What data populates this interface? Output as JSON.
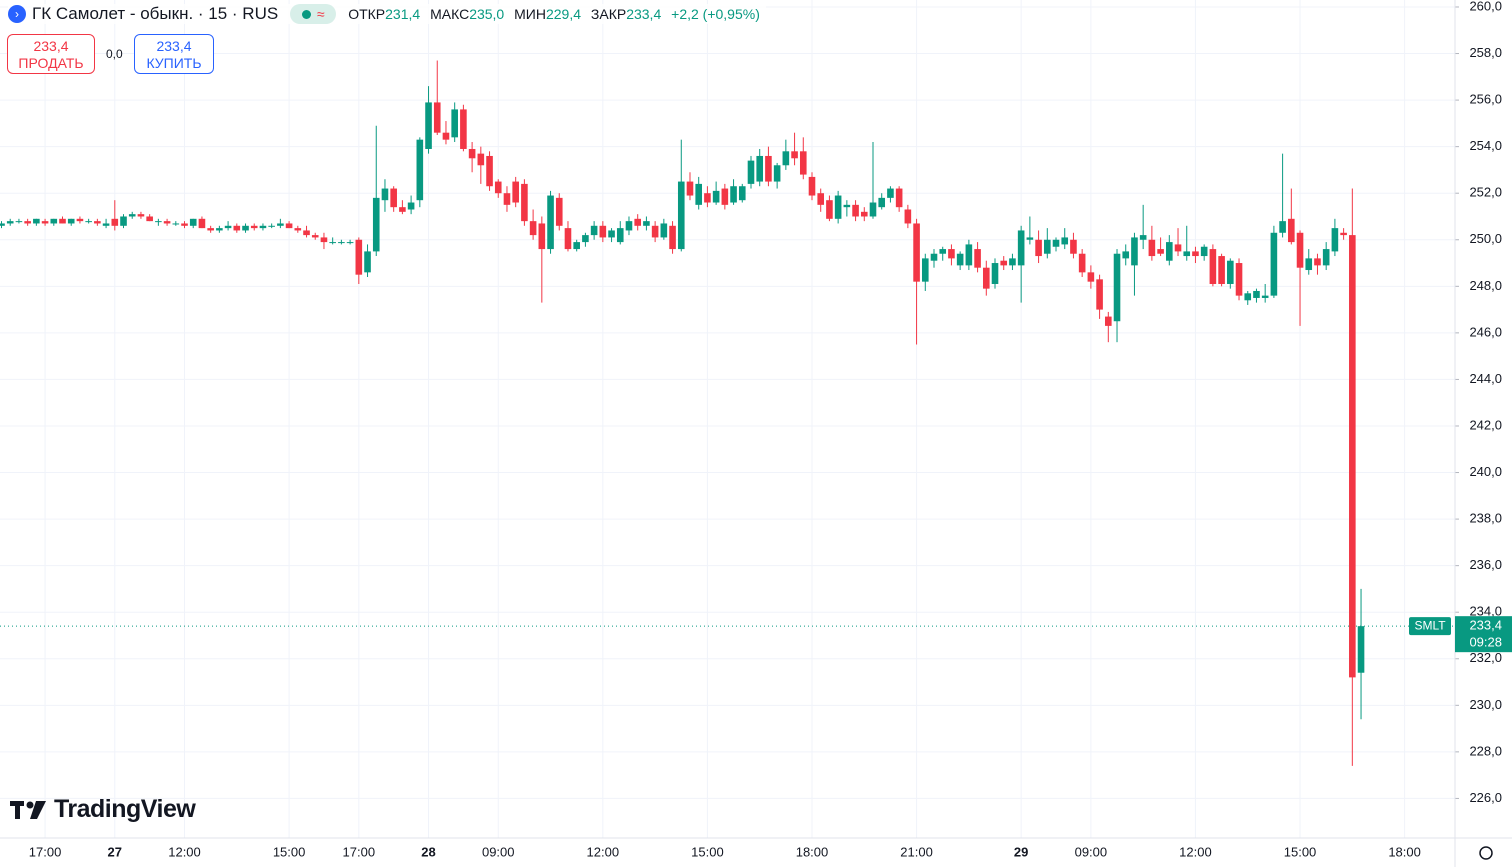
{
  "header": {
    "symbol": "ГК Самолет - обыкн. · 15 · RUS",
    "ohlc_legend": [
      {
        "label": "ОТКР",
        "value": "231,4"
      },
      {
        "label": "МАКС",
        "value": "235,0"
      },
      {
        "label": "МИН",
        "value": "229,4"
      },
      {
        "label": "ЗАКР",
        "value": "233,4"
      }
    ],
    "change": "+2,2 (+0,95%)"
  },
  "trade": {
    "sell_price": "233,4",
    "sell_label": "ПРОДАТЬ",
    "spread": "0,0",
    "buy_price": "233,4",
    "buy_label": "КУПИТЬ"
  },
  "branding": {
    "logo": "TradingView"
  },
  "chart_data": {
    "type": "candlestick",
    "up_color": "#089981",
    "down_color": "#f23645",
    "grid": true,
    "ylim": [
      224.3,
      260.3
    ],
    "yticks": [
      {
        "value": 226,
        "label": "226,0"
      },
      {
        "value": 228,
        "label": "228,0"
      },
      {
        "value": 230,
        "label": "230,0"
      },
      {
        "value": 232,
        "label": "232,0"
      },
      {
        "value": 234,
        "label": "234,0"
      },
      {
        "value": 236,
        "label": "236,0"
      },
      {
        "value": 238,
        "label": "238,0"
      },
      {
        "value": 240,
        "label": "240,0"
      },
      {
        "value": 242,
        "label": "242,0"
      },
      {
        "value": 244,
        "label": "244,0"
      },
      {
        "value": 246,
        "label": "246,0"
      },
      {
        "value": 248,
        "label": "248,0"
      },
      {
        "value": 250,
        "label": "250,0"
      },
      {
        "value": 252,
        "label": "252,0"
      },
      {
        "value": 254,
        "label": "254,0"
      },
      {
        "value": 256,
        "label": "256,0"
      },
      {
        "value": 258,
        "label": "258,0"
      },
      {
        "value": 260,
        "label": "260,0"
      }
    ],
    "last_price": {
      "value": 233.4,
      "label": "233,4",
      "ticker": "SMLT",
      "countdown": "09:28"
    },
    "categories": [
      null,
      null,
      null,
      null,
      null,
      "17:00",
      null,
      null,
      null,
      null,
      null,
      null,
      null,
      "27",
      null,
      null,
      null,
      null,
      null,
      null,
      null,
      "12:00",
      null,
      null,
      null,
      null,
      null,
      null,
      null,
      null,
      null,
      null,
      null,
      "15:00",
      null,
      null,
      null,
      null,
      null,
      null,
      null,
      "17:00",
      null,
      null,
      null,
      null,
      null,
      null,
      null,
      "28",
      null,
      null,
      null,
      null,
      null,
      null,
      null,
      "09:00",
      null,
      null,
      null,
      null,
      null,
      null,
      null,
      null,
      null,
      null,
      null,
      "12:00",
      null,
      null,
      null,
      null,
      null,
      null,
      null,
      null,
      null,
      null,
      null,
      "15:00",
      null,
      null,
      null,
      null,
      null,
      null,
      null,
      null,
      null,
      null,
      null,
      "18:00",
      null,
      null,
      null,
      null,
      null,
      null,
      null,
      null,
      null,
      null,
      null,
      "21:00",
      null,
      null,
      null,
      null,
      null,
      null,
      null,
      null,
      null,
      null,
      null,
      "29",
      null,
      null,
      null,
      null,
      null,
      null,
      null,
      "09:00",
      null,
      null,
      null,
      null,
      null,
      null,
      null,
      null,
      null,
      null,
      null,
      "12:00",
      null,
      null,
      null,
      null,
      null,
      null,
      null,
      null,
      null,
      null,
      null,
      "15:00",
      null,
      null,
      null,
      null,
      null,
      null,
      null,
      null,
      null,
      null,
      null,
      "18:00"
    ],
    "ohlc": [
      [
        250.6,
        250.8,
        250.5,
        250.7
      ],
      [
        250.7,
        250.9,
        250.6,
        250.8
      ],
      [
        250.8,
        250.9,
        250.7,
        250.8
      ],
      [
        250.8,
        250.9,
        250.6,
        250.7
      ],
      [
        250.7,
        250.9,
        250.6,
        250.9
      ],
      [
        250.8,
        250.9,
        250.6,
        250.7
      ],
      [
        250.7,
        250.9,
        250.6,
        250.9
      ],
      [
        250.9,
        251.0,
        250.7,
        250.7
      ],
      [
        250.7,
        250.9,
        250.6,
        250.9
      ],
      [
        250.9,
        251.0,
        250.7,
        250.8
      ],
      [
        250.8,
        250.9,
        250.7,
        250.8
      ],
      [
        250.8,
        250.9,
        250.6,
        250.7
      ],
      [
        250.6,
        250.9,
        250.5,
        250.7
      ],
      [
        250.9,
        251.7,
        250.4,
        250.6
      ],
      [
        250.6,
        251.1,
        250.5,
        251.0
      ],
      [
        251.0,
        251.2,
        250.9,
        251.1
      ],
      [
        251.1,
        251.2,
        250.9,
        251.0
      ],
      [
        251.0,
        251.1,
        250.8,
        250.8
      ],
      [
        250.8,
        250.9,
        250.6,
        250.8
      ],
      [
        250.8,
        250.9,
        250.6,
        250.7
      ],
      [
        250.7,
        250.8,
        250.6,
        250.7
      ],
      [
        250.7,
        250.8,
        250.5,
        250.6
      ],
      [
        250.6,
        250.9,
        250.5,
        250.9
      ],
      [
        250.9,
        251.0,
        250.5,
        250.5
      ],
      [
        250.5,
        250.6,
        250.3,
        250.4
      ],
      [
        250.4,
        250.6,
        250.3,
        250.5
      ],
      [
        250.5,
        250.8,
        250.4,
        250.6
      ],
      [
        250.6,
        250.7,
        250.3,
        250.4
      ],
      [
        250.4,
        250.7,
        250.3,
        250.6
      ],
      [
        250.6,
        250.7,
        250.4,
        250.5
      ],
      [
        250.5,
        250.7,
        250.4,
        250.6
      ],
      [
        250.6,
        250.7,
        250.5,
        250.6
      ],
      [
        250.6,
        250.9,
        250.5,
        250.7
      ],
      [
        250.7,
        250.8,
        250.5,
        250.5
      ],
      [
        250.5,
        250.6,
        250.3,
        250.4
      ],
      [
        250.4,
        250.6,
        250.1,
        250.2
      ],
      [
        250.2,
        250.3,
        250.0,
        250.1
      ],
      [
        250.1,
        250.3,
        249.6,
        249.9
      ],
      [
        249.9,
        250.1,
        249.8,
        249.9
      ],
      [
        249.9,
        250.0,
        249.8,
        249.9
      ],
      [
        249.9,
        250.0,
        249.8,
        249.9
      ],
      [
        250.0,
        250.1,
        248.1,
        248.5
      ],
      [
        248.6,
        249.8,
        248.4,
        249.5
      ],
      [
        249.5,
        254.9,
        249.3,
        251.8
      ],
      [
        251.7,
        252.6,
        251.2,
        252.2
      ],
      [
        252.2,
        252.3,
        251.2,
        251.4
      ],
      [
        251.4,
        251.7,
        251.1,
        251.2
      ],
      [
        251.3,
        251.9,
        251.1,
        251.6
      ],
      [
        251.7,
        254.4,
        251.4,
        254.3
      ],
      [
        253.9,
        256.6,
        253.7,
        255.9
      ],
      [
        255.9,
        257.7,
        254.5,
        254.6
      ],
      [
        254.6,
        255.1,
        254.1,
        254.3
      ],
      [
        254.4,
        255.9,
        254.2,
        255.6
      ],
      [
        255.6,
        255.8,
        253.8,
        253.9
      ],
      [
        253.9,
        254.2,
        252.9,
        253.5
      ],
      [
        253.7,
        254.0,
        252.4,
        253.2
      ],
      [
        253.6,
        253.8,
        252.1,
        252.3
      ],
      [
        252.5,
        252.6,
        251.8,
        252.0
      ],
      [
        252.0,
        252.3,
        251.2,
        251.5
      ],
      [
        252.5,
        252.7,
        251.4,
        251.6
      ],
      [
        252.4,
        252.6,
        250.6,
        250.8
      ],
      [
        250.8,
        251.3,
        250.0,
        250.2
      ],
      [
        250.7,
        251.0,
        247.3,
        249.6
      ],
      [
        249.6,
        252.1,
        249.4,
        251.9
      ],
      [
        251.8,
        252.0,
        250.4,
        250.6
      ],
      [
        250.5,
        250.8,
        249.5,
        249.6
      ],
      [
        249.6,
        250.0,
        249.5,
        249.9
      ],
      [
        249.9,
        250.3,
        249.7,
        250.2
      ],
      [
        250.2,
        250.8,
        250.0,
        250.6
      ],
      [
        250.6,
        250.8,
        249.9,
        250.1
      ],
      [
        250.1,
        250.5,
        249.9,
        250.4
      ],
      [
        249.9,
        250.8,
        249.8,
        250.5
      ],
      [
        250.4,
        251.0,
        250.2,
        250.8
      ],
      [
        250.9,
        251.1,
        250.4,
        250.6
      ],
      [
        250.6,
        251.0,
        250.4,
        250.8
      ],
      [
        250.6,
        250.8,
        249.9,
        250.1
      ],
      [
        250.1,
        250.9,
        250.0,
        250.7
      ],
      [
        250.6,
        250.8,
        249.4,
        249.6
      ],
      [
        249.6,
        254.3,
        249.5,
        252.5
      ],
      [
        252.5,
        252.9,
        251.7,
        251.9
      ],
      [
        251.5,
        252.7,
        251.3,
        252.4
      ],
      [
        252.0,
        252.3,
        251.4,
        251.6
      ],
      [
        251.6,
        252.5,
        251.5,
        252.1
      ],
      [
        252.2,
        252.4,
        251.3,
        251.5
      ],
      [
        251.6,
        252.6,
        251.5,
        252.3
      ],
      [
        251.7,
        252.4,
        251.6,
        252.3
      ],
      [
        252.4,
        253.6,
        252.2,
        253.4
      ],
      [
        252.5,
        253.9,
        252.3,
        253.6
      ],
      [
        253.6,
        254.0,
        252.3,
        252.5
      ],
      [
        252.5,
        253.3,
        252.2,
        253.2
      ],
      [
        253.2,
        254.3,
        253.0,
        253.8
      ],
      [
        253.8,
        254.6,
        253.2,
        253.5
      ],
      [
        253.8,
        254.4,
        252.6,
        252.8
      ],
      [
        252.7,
        252.9,
        251.7,
        251.9
      ],
      [
        252.0,
        252.2,
        251.2,
        251.5
      ],
      [
        251.7,
        251.9,
        250.8,
        250.9
      ],
      [
        250.9,
        252.1,
        250.7,
        251.9
      ],
      [
        251.4,
        251.7,
        251.0,
        251.5
      ],
      [
        251.5,
        251.7,
        250.8,
        251.0
      ],
      [
        251.2,
        251.4,
        250.8,
        251.0
      ],
      [
        251.0,
        254.2,
        250.9,
        251.6
      ],
      [
        251.4,
        252.0,
        251.3,
        251.8
      ],
      [
        251.8,
        252.3,
        251.6,
        252.2
      ],
      [
        252.2,
        252.3,
        251.2,
        251.4
      ],
      [
        251.3,
        251.5,
        250.5,
        250.7
      ],
      [
        250.7,
        250.9,
        245.5,
        248.2
      ],
      [
        248.2,
        249.4,
        247.8,
        249.2
      ],
      [
        249.1,
        249.6,
        248.8,
        249.4
      ],
      [
        249.4,
        249.7,
        249.1,
        249.6
      ],
      [
        249.6,
        249.8,
        248.9,
        249.2
      ],
      [
        248.9,
        249.5,
        248.7,
        249.4
      ],
      [
        248.9,
        250.0,
        248.7,
        249.8
      ],
      [
        249.6,
        249.9,
        248.6,
        248.8
      ],
      [
        248.8,
        249.1,
        247.6,
        247.9
      ],
      [
        248.1,
        249.2,
        247.9,
        249.0
      ],
      [
        249.1,
        249.3,
        248.7,
        248.9
      ],
      [
        248.9,
        249.4,
        248.7,
        249.2
      ],
      [
        248.9,
        250.6,
        247.3,
        250.4
      ],
      [
        250.0,
        251.0,
        249.8,
        250.1
      ],
      [
        250.0,
        250.4,
        249.0,
        249.3
      ],
      [
        249.4,
        250.5,
        249.2,
        250.0
      ],
      [
        249.7,
        250.1,
        249.5,
        250.0
      ],
      [
        249.8,
        250.5,
        249.6,
        250.1
      ],
      [
        250.0,
        250.3,
        249.2,
        249.4
      ],
      [
        249.4,
        249.6,
        248.4,
        248.6
      ],
      [
        248.6,
        248.9,
        247.9,
        248.2
      ],
      [
        248.3,
        248.5,
        246.6,
        247.0
      ],
      [
        246.7,
        246.9,
        245.6,
        246.3
      ],
      [
        246.5,
        249.6,
        245.6,
        249.4
      ],
      [
        249.2,
        249.8,
        248.9,
        249.5
      ],
      [
        248.9,
        250.3,
        247.6,
        250.1
      ],
      [
        250.0,
        251.5,
        249.6,
        250.2
      ],
      [
        250.0,
        250.6,
        249.1,
        249.3
      ],
      [
        249.6,
        250.1,
        249.3,
        249.4
      ],
      [
        249.1,
        250.2,
        248.9,
        249.9
      ],
      [
        249.8,
        250.5,
        249.3,
        249.5
      ],
      [
        249.3,
        250.6,
        249.1,
        249.5
      ],
      [
        249.5,
        249.7,
        249.0,
        249.3
      ],
      [
        249.3,
        249.8,
        249.1,
        249.7
      ],
      [
        249.6,
        249.8,
        248.0,
        248.1
      ],
      [
        249.3,
        249.4,
        248.0,
        248.1
      ],
      [
        248.1,
        249.2,
        247.9,
        249.1
      ],
      [
        249.0,
        249.2,
        247.4,
        247.6
      ],
      [
        247.4,
        247.8,
        247.2,
        247.7
      ],
      [
        247.5,
        247.9,
        247.3,
        247.8
      ],
      [
        247.5,
        248.1,
        247.3,
        247.6
      ],
      [
        247.6,
        250.6,
        247.5,
        250.3
      ],
      [
        250.3,
        253.7,
        250.1,
        250.8
      ],
      [
        250.9,
        252.2,
        249.8,
        249.9
      ],
      [
        250.3,
        250.4,
        246.3,
        248.8
      ],
      [
        248.7,
        249.6,
        248.5,
        249.2
      ],
      [
        249.2,
        249.4,
        248.5,
        248.9
      ],
      [
        248.9,
        249.9,
        248.7,
        249.6
      ],
      [
        249.5,
        250.9,
        249.3,
        250.5
      ],
      [
        250.3,
        250.5,
        250.0,
        250.2
      ],
      [
        250.2,
        252.2,
        227.4,
        231.2
      ],
      [
        231.4,
        235.0,
        229.4,
        233.4
      ],
      null,
      null,
      null,
      null,
      null
    ]
  }
}
